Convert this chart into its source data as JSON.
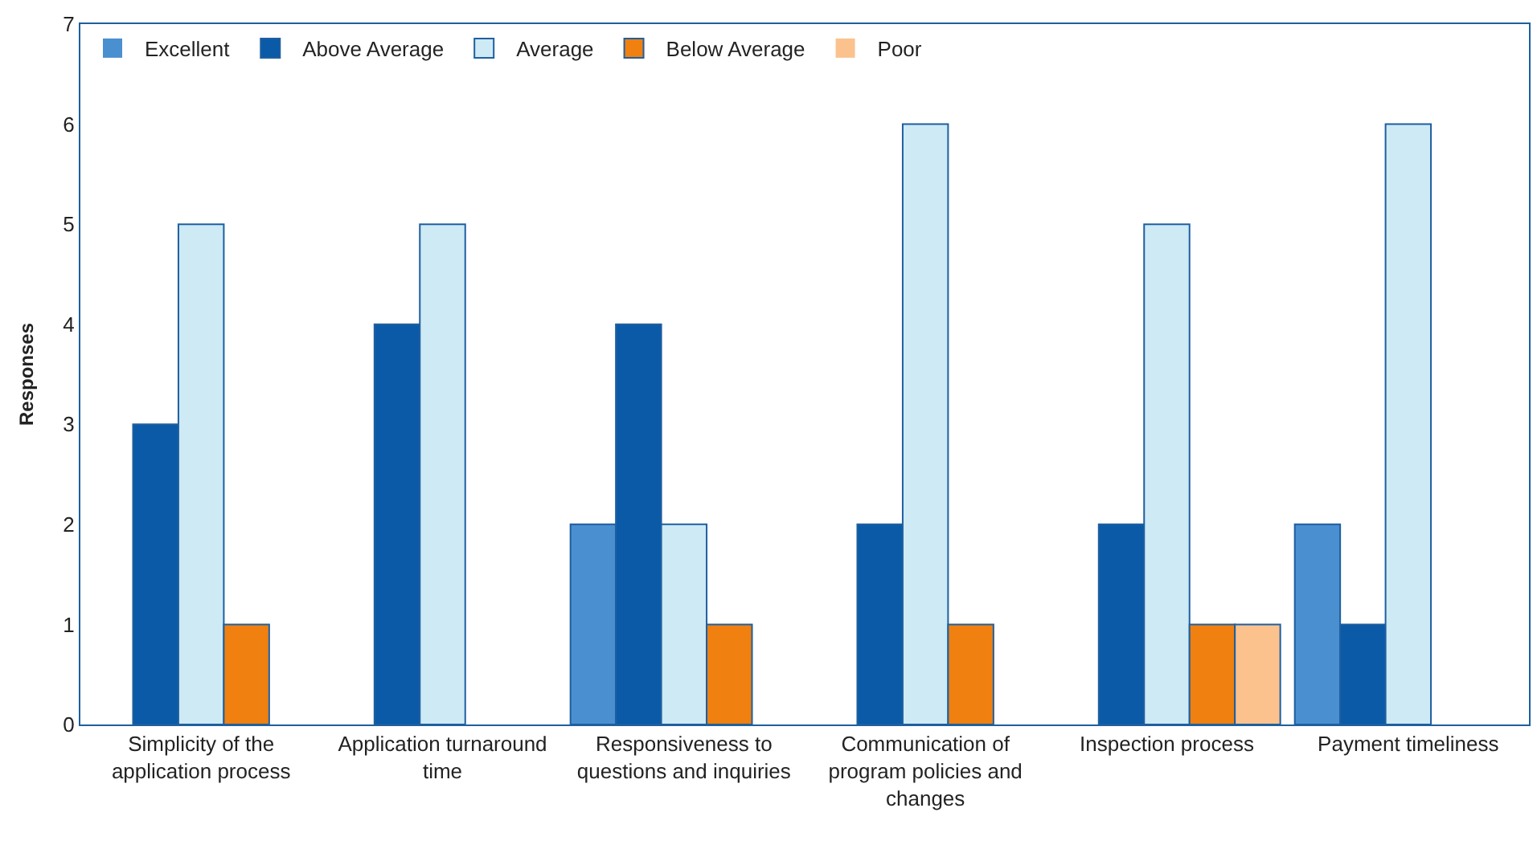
{
  "chart_data": {
    "type": "bar",
    "ylabel": "Responses",
    "categories": [
      "Simplicity of the application process",
      "Application turnaround time",
      "Responsiveness to questions and inquiries",
      "Communication of program policies and changes",
      "Inspection process",
      "Payment timeliness"
    ],
    "series": [
      {
        "name": "Excellent",
        "color": "#4a8fd0",
        "values": [
          0,
          0,
          2,
          0,
          0,
          2
        ]
      },
      {
        "name": "Above Average",
        "color": "#0a5aa8",
        "values": [
          3,
          4,
          4,
          2,
          2,
          1
        ]
      },
      {
        "name": "Average",
        "color": "#cdeaf5",
        "values": [
          5,
          5,
          2,
          6,
          5,
          6
        ]
      },
      {
        "name": "Below Average",
        "color": "#f08010",
        "values": [
          1,
          0,
          1,
          1,
          1,
          0
        ]
      },
      {
        "name": "Poor",
        "color": "#fbc28e",
        "values": [
          0,
          0,
          0,
          0,
          1,
          0
        ]
      }
    ],
    "ylim": [
      0,
      7
    ],
    "yticks": [
      0,
      1,
      2,
      3,
      4,
      5,
      6,
      7
    ],
    "legend": "top left"
  }
}
